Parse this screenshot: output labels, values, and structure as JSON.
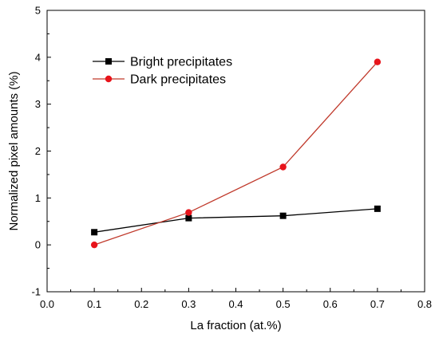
{
  "chart_data": {
    "type": "line",
    "title": "",
    "xlabel": "La fraction (at.%)",
    "ylabel": "Normalized pixel amounts (%)",
    "xlim": [
      0.0,
      0.8
    ],
    "ylim": [
      -1,
      5
    ],
    "x_ticks": [
      "0.0",
      "0.1",
      "0.2",
      "0.3",
      "0.4",
      "0.5",
      "0.6",
      "0.7",
      "0.8"
    ],
    "y_ticks": [
      "-1",
      "0",
      "1",
      "2",
      "3",
      "4",
      "5"
    ],
    "x": [
      0.1,
      0.3,
      0.5,
      0.7
    ],
    "grid": false,
    "legend_position": "top-left",
    "series": [
      {
        "name": "Bright precipitates",
        "values": [
          0.27,
          0.57,
          0.62,
          0.77
        ],
        "color": "#000000",
        "marker": "square",
        "line_color": "#000000"
      },
      {
        "name": "Dark precipitates",
        "values": [
          0.0,
          0.69,
          1.66,
          3.9
        ],
        "color": "#e8141b",
        "marker": "circle",
        "line_color": "#c0392b"
      }
    ]
  }
}
